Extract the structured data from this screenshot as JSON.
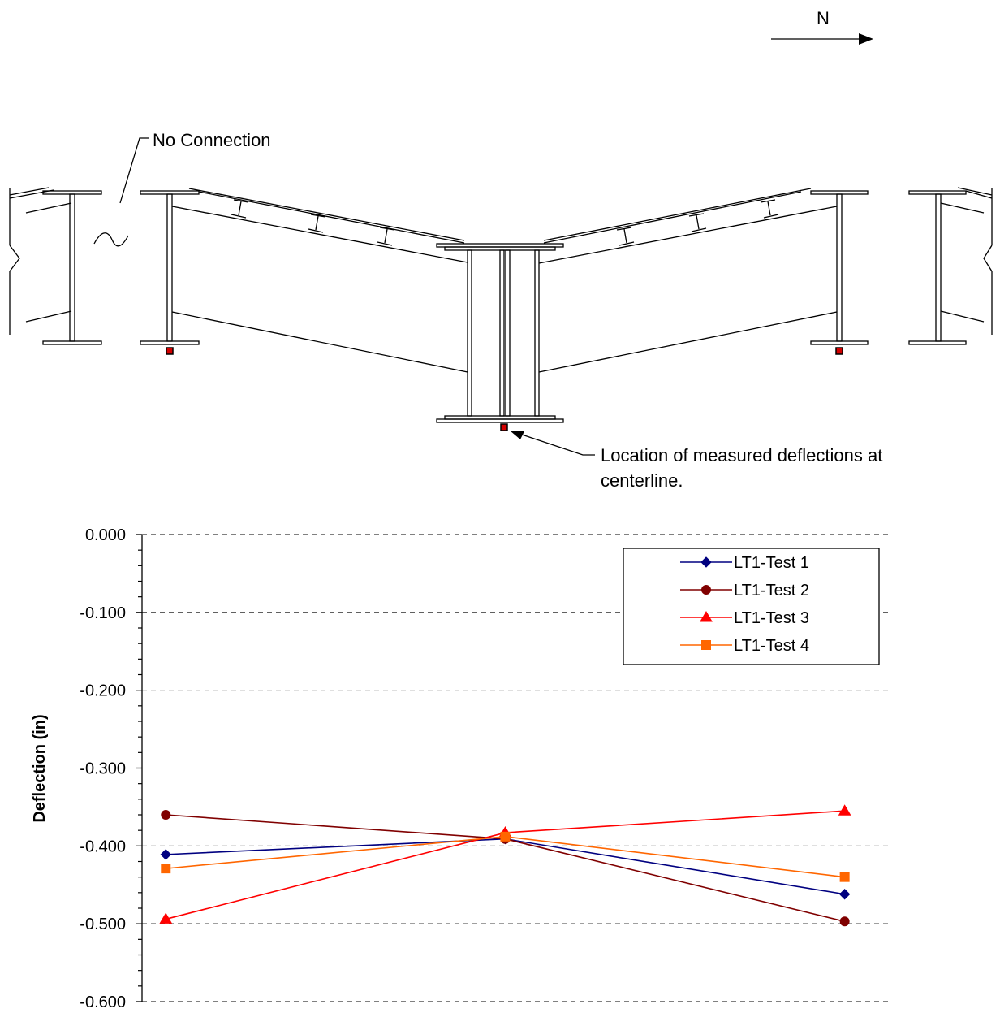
{
  "diagram": {
    "north_label": "N",
    "no_connection_label": "No Connection",
    "measurement_note_line1": "Location of measured deflections at",
    "measurement_note_line2": "centerline.",
    "marker_color": "#d40000"
  },
  "chart_data": {
    "type": "line",
    "title": "",
    "xlabel": "",
    "ylabel": "Deflection (in)",
    "x": [
      1,
      2,
      3
    ],
    "xlim": [
      0.93,
      3.13
    ],
    "ylim": [
      -0.6,
      0.0
    ],
    "yticks": [
      0.0,
      -0.1,
      -0.2,
      -0.3,
      -0.4,
      -0.5,
      -0.6
    ],
    "ytick_labels": [
      "0.000",
      "-0.100",
      "-0.200",
      "-0.300",
      "-0.400",
      "-0.500",
      "-0.600"
    ],
    "grid": "horizontal dashed",
    "legend_position": "top-right",
    "series": [
      {
        "name": "LT1-Test 1",
        "color": "#000080",
        "marker": "diamond",
        "values": [
          -0.411,
          -0.391,
          -0.462
        ]
      },
      {
        "name": "LT1-Test 2",
        "color": "#800000",
        "marker": "circle",
        "values": [
          -0.36,
          -0.391,
          -0.497
        ]
      },
      {
        "name": "LT1-Test 3",
        "color": "#ff0000",
        "marker": "triangle",
        "values": [
          -0.494,
          -0.383,
          -0.355
        ]
      },
      {
        "name": "LT1-Test 4",
        "color": "#ff6600",
        "marker": "square",
        "values": [
          -0.429,
          -0.388,
          -0.44
        ]
      }
    ]
  }
}
